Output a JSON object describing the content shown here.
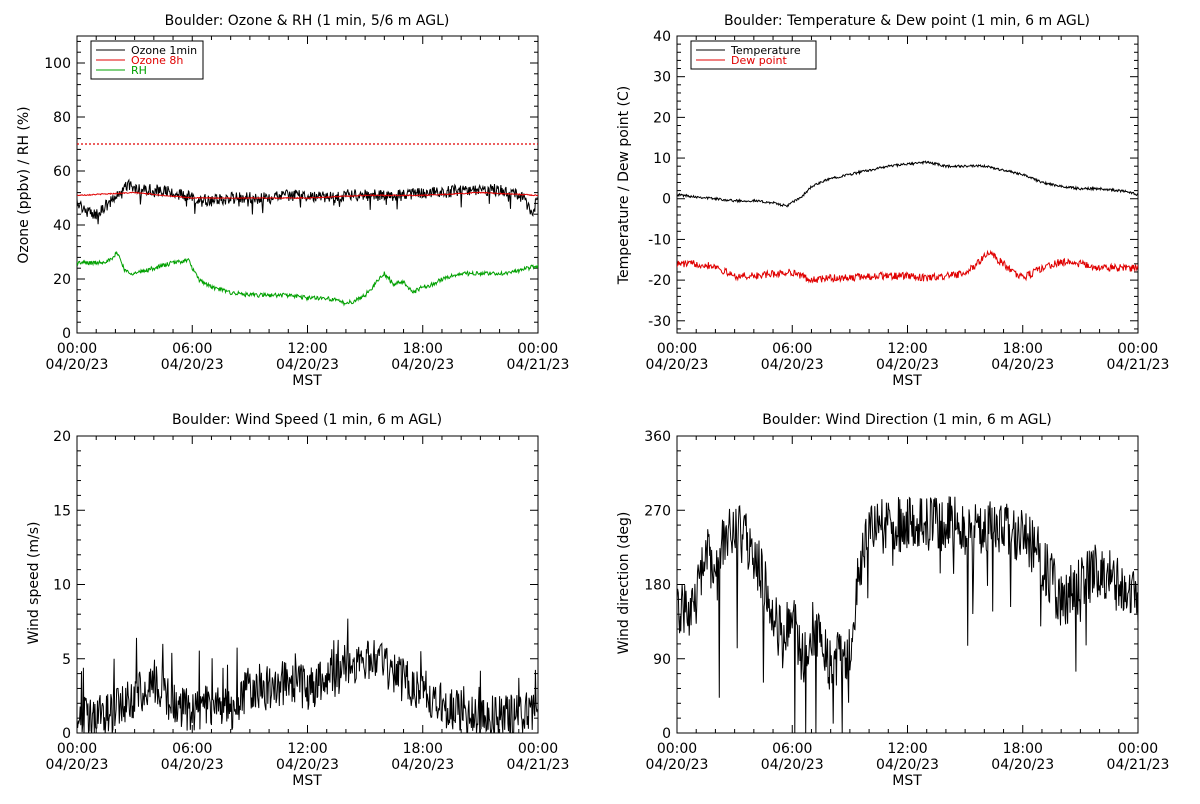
{
  "chart_data": [
    {
      "type": "line",
      "title": "Boulder: Ozone & RH (1 min, 5/6 m AGL)",
      "xlabel": "MST",
      "ylabel": "Ozone (ppbv) / RH (%)",
      "xlim": [
        0,
        24
      ],
      "ylim": [
        0,
        110
      ],
      "xticks": [
        {
          "t": 0,
          "time": "00:00",
          "date": "04/20/23"
        },
        {
          "t": 6,
          "time": "06:00",
          "date": "04/20/23"
        },
        {
          "t": 12,
          "time": "12:00",
          "date": "04/20/23"
        },
        {
          "t": 18,
          "time": "18:00",
          "date": "04/20/23"
        },
        {
          "t": 24,
          "time": "00:00",
          "date": "04/21/23"
        }
      ],
      "yticks": [
        0,
        20,
        40,
        60,
        80,
        100
      ],
      "reference_line": {
        "y": 70,
        "color": "#e00000",
        "style": "dotted"
      },
      "legend_position": "top-left",
      "series": [
        {
          "name": "Ozone 1min",
          "color": "#000000",
          "noise": 2.2,
          "spike": 0.06,
          "spikeAmp": -6,
          "x": [
            0,
            0.5,
            1.0,
            1.5,
            2.0,
            2.5,
            3.0,
            4.0,
            5.0,
            6.0,
            7.0,
            8.0,
            9.0,
            10.0,
            11.0,
            12.0,
            13.0,
            14.0,
            15.0,
            16.0,
            17.0,
            18.0,
            19.0,
            20.0,
            21.0,
            22.0,
            22.8,
            23.3,
            23.7,
            24.0
          ],
          "y": [
            49,
            45,
            44,
            47,
            50,
            55,
            54,
            53,
            52,
            50,
            49,
            50,
            50,
            50,
            51,
            51,
            50,
            51,
            51,
            51,
            51,
            52,
            52,
            53,
            53,
            53,
            52,
            50,
            43,
            52
          ]
        },
        {
          "name": "Ozone 8h",
          "color": "#e00000",
          "noise": 0.2,
          "x": [
            0,
            3,
            6,
            9,
            12,
            15,
            18,
            21,
            24
          ],
          "y": [
            51,
            52,
            50,
            50,
            50,
            51,
            51,
            52,
            51
          ]
        },
        {
          "name": "RH",
          "color": "#00a000",
          "noise": 0.8,
          "x": [
            0,
            1.0,
            1.8,
            2.1,
            2.5,
            3.0,
            4.0,
            5.0,
            5.8,
            6.3,
            7.0,
            8.0,
            9.0,
            10.0,
            11.0,
            12.0,
            13.0,
            13.5,
            14.0,
            14.5,
            15.0,
            15.5,
            16.0,
            16.5,
            17.0,
            17.5,
            18.0,
            18.5,
            19.0,
            20.0,
            21.0,
            22.0,
            23.0,
            24.0
          ],
          "y": [
            26,
            26,
            27,
            30,
            23,
            22,
            24,
            26,
            27,
            20,
            17,
            15,
            14,
            14,
            14,
            13,
            13,
            12,
            11,
            12,
            14,
            18,
            22,
            18,
            19,
            15,
            17,
            18,
            20,
            22,
            22,
            22,
            23,
            25
          ]
        }
      ]
    },
    {
      "type": "line",
      "title": "Boulder: Temperature & Dew point (1 min, 6 m AGL)",
      "xlabel": "MST",
      "ylabel": "Temperature / Dew point (C)",
      "xlim": [
        0,
        24
      ],
      "ylim": [
        -33,
        40
      ],
      "xticks": [
        {
          "t": 0,
          "time": "00:00",
          "date": "04/20/23"
        },
        {
          "t": 6,
          "time": "06:00",
          "date": "04/20/23"
        },
        {
          "t": 12,
          "time": "12:00",
          "date": "04/20/23"
        },
        {
          "t": 18,
          "time": "18:00",
          "date": "04/20/23"
        },
        {
          "t": 24,
          "time": "00:00",
          "date": "04/21/23"
        }
      ],
      "yticks": [
        -30,
        -20,
        -10,
        0,
        10,
        20,
        30,
        40
      ],
      "legend_position": "top-left",
      "series": [
        {
          "name": "Temperature",
          "color": "#000000",
          "noise": 0.3,
          "x": [
            0,
            1,
            2,
            3,
            4,
            5,
            5.7,
            6.5,
            7,
            8,
            9,
            10,
            11,
            12,
            13,
            14,
            15,
            16,
            17,
            18,
            19,
            20,
            21,
            22,
            23,
            23.7,
            24
          ],
          "y": [
            1,
            0.5,
            0,
            -0.5,
            -0.5,
            -1,
            -1.8,
            0.5,
            3,
            5,
            6,
            7,
            8,
            8.5,
            9,
            8,
            8,
            8,
            7,
            6,
            4,
            3,
            2.5,
            2.5,
            2,
            1.5,
            1
          ]
        },
        {
          "name": "Dew point",
          "color": "#e00000",
          "noise": 0.9,
          "x": [
            0,
            1,
            2,
            2.5,
            3,
            4,
            5,
            6,
            7,
            8,
            9,
            10,
            11,
            12,
            13,
            14,
            15,
            15.5,
            16,
            16.3,
            17,
            17.5,
            18,
            19,
            20,
            21,
            22,
            23,
            24
          ],
          "y": [
            -16,
            -16,
            -16.5,
            -18,
            -19,
            -19,
            -18.5,
            -18,
            -20,
            -19.5,
            -19.5,
            -19,
            -19,
            -19,
            -19.5,
            -19,
            -18.5,
            -16.5,
            -14,
            -13.5,
            -16,
            -18,
            -19.5,
            -17,
            -15.5,
            -16,
            -17,
            -17,
            -17
          ]
        }
      ]
    },
    {
      "type": "line",
      "title": "Boulder: Wind Speed (1 min, 6 m AGL)",
      "xlabel": "MST",
      "ylabel": "Wind speed (m/s)",
      "xlim": [
        0,
        24
      ],
      "ylim": [
        0,
        20
      ],
      "xticks": [
        {
          "t": 0,
          "time": "00:00",
          "date": "04/20/23"
        },
        {
          "t": 6,
          "time": "06:00",
          "date": "04/20/23"
        },
        {
          "t": 12,
          "time": "12:00",
          "date": "04/20/23"
        },
        {
          "t": 18,
          "time": "18:00",
          "date": "04/20/23"
        },
        {
          "t": 24,
          "time": "00:00",
          "date": "04/21/23"
        }
      ],
      "yticks": [
        0,
        5,
        10,
        15,
        20
      ],
      "series": [
        {
          "color": "#000000",
          "noise": 1.5,
          "spike": 0.05,
          "spikeAmp": 4,
          "floor": 0,
          "x": [
            0,
            1,
            2,
            3,
            4,
            5,
            6,
            7,
            8,
            9,
            10,
            11,
            12,
            13,
            14,
            15,
            16,
            17,
            18,
            19,
            20,
            21,
            22,
            23,
            24
          ],
          "y": [
            1,
            1,
            1.5,
            2.5,
            3.5,
            2,
            1.5,
            2,
            1.5,
            3,
            3,
            3.5,
            3,
            3.5,
            4.5,
            5,
            4.5,
            3.5,
            3,
            1.5,
            1.5,
            1.2,
            1,
            1.2,
            1.5
          ]
        }
      ]
    },
    {
      "type": "line",
      "title": "Boulder: Wind Direction (1 min, 6 m AGL)",
      "xlabel": "MST",
      "ylabel": "Wind direction (deg)",
      "xlim": [
        0,
        24
      ],
      "ylim": [
        0,
        360
      ],
      "xticks": [
        {
          "t": 0,
          "time": "00:00",
          "date": "04/20/23"
        },
        {
          "t": 6,
          "time": "06:00",
          "date": "04/20/23"
        },
        {
          "t": 12,
          "time": "12:00",
          "date": "04/20/23"
        },
        {
          "t": 18,
          "time": "18:00",
          "date": "04/20/23"
        },
        {
          "t": 24,
          "time": "00:00",
          "date": "04/21/23"
        }
      ],
      "yticks": [
        0,
        90,
        180,
        270,
        360
      ],
      "series": [
        {
          "color": "#000000",
          "noise": 35,
          "spike": 0.05,
          "spikeAmp": -160,
          "floor": 0,
          "ceil": 360,
          "x": [
            0,
            1,
            1.5,
            2,
            2.5,
            3,
            4,
            5,
            5.5,
            6,
            6.5,
            7,
            8,
            9,
            9.5,
            10,
            11,
            12,
            13,
            14,
            15,
            16,
            17,
            18,
            19,
            20,
            21,
            22,
            23,
            24
          ],
          "y": [
            140,
            160,
            220,
            180,
            240,
            250,
            220,
            150,
            110,
            150,
            90,
            130,
            80,
            100,
            200,
            250,
            250,
            255,
            250,
            255,
            250,
            245,
            250,
            240,
            210,
            160,
            180,
            200,
            180,
            160
          ]
        }
      ]
    }
  ]
}
